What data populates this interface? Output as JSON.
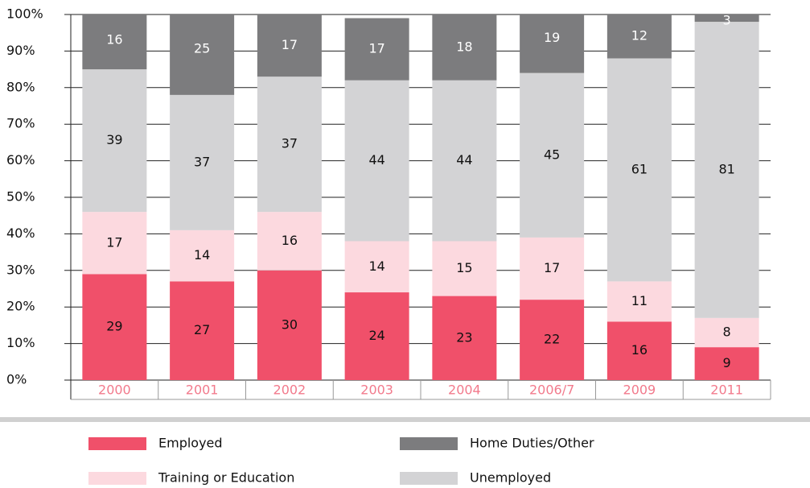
{
  "chart_data": {
    "type": "stacked_bar",
    "categories": [
      "2000",
      "2001",
      "2002",
      "2003",
      "2004",
      "2006/7",
      "2009",
      "2011"
    ],
    "series": [
      {
        "name": "Employed",
        "color": "#f0506a",
        "values": [
          29,
          27,
          30,
          24,
          23,
          22,
          16,
          9
        ]
      },
      {
        "name": "Training or Education",
        "color": "#fcd9df",
        "values": [
          17,
          14,
          16,
          14,
          15,
          17,
          11,
          8
        ]
      },
      {
        "name": "Unemployed",
        "color": "#d3d3d5",
        "values": [
          39,
          37,
          37,
          44,
          44,
          45,
          61,
          81
        ]
      },
      {
        "name": "Home Duties/Other",
        "color": "#7c7c7e",
        "values": [
          16,
          25,
          17,
          17,
          18,
          19,
          12,
          3
        ]
      }
    ],
    "ylim": [
      0,
      100
    ],
    "yticks": [
      {
        "value": 0,
        "label": "0%"
      },
      {
        "value": 10,
        "label": "10%"
      },
      {
        "value": 20,
        "label": "20%"
      },
      {
        "value": 30,
        "label": "30%"
      },
      {
        "value": 40,
        "label": "40%"
      },
      {
        "value": 50,
        "label": "50%"
      },
      {
        "value": 60,
        "label": "60%"
      },
      {
        "value": 70,
        "label": "70%"
      },
      {
        "value": 80,
        "label": "80%"
      },
      {
        "value": 90,
        "label": "90%"
      },
      {
        "value": 100,
        "label": "100%"
      }
    ],
    "grid": true
  }
}
